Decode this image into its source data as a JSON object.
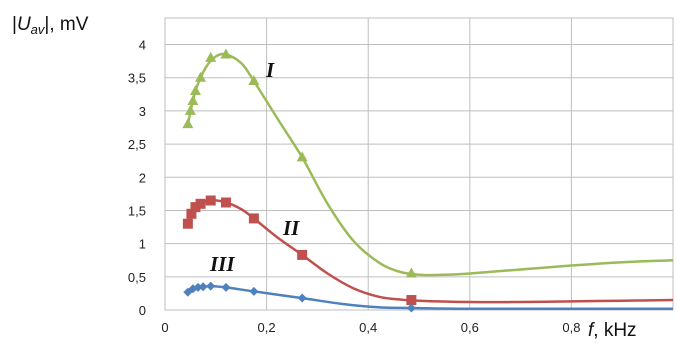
{
  "chart_data": {
    "type": "line",
    "ylabel_parts": {
      "bar_left": "|",
      "var": "U",
      "sub": "av",
      "bar_right": "|",
      "unit": ", mV"
    },
    "xlabel_parts": {
      "var": "f",
      "unit": ", kHz"
    },
    "xlim": [
      0,
      1.0
    ],
    "ylim": [
      0,
      4.4
    ],
    "x_ticks": [
      0,
      0.2,
      0.4,
      0.6,
      0.8
    ],
    "x_tick_labels": [
      "0",
      "0,2",
      "0,4",
      "0,6",
      "0,8"
    ],
    "y_ticks": [
      0,
      0.5,
      1,
      1.5,
      2,
      2.5,
      3,
      3.5,
      4
    ],
    "y_tick_labels": [
      "0",
      "0,5",
      "1",
      "1,5",
      "2",
      "2,5",
      "3",
      "3,5",
      "4"
    ],
    "grid": true,
    "series": [
      {
        "name": "I",
        "color": "#9bbb59",
        "marker": "triangle",
        "points": [
          [
            0.045,
            2.8
          ],
          [
            0.05,
            3.0
          ],
          [
            0.055,
            3.15
          ],
          [
            0.06,
            3.3
          ],
          [
            0.07,
            3.5
          ],
          [
            0.09,
            3.8
          ],
          [
            0.12,
            3.85
          ],
          [
            0.175,
            3.45
          ],
          [
            0.27,
            2.3
          ],
          [
            0.485,
            0.55
          ]
        ],
        "curve": [
          [
            0.045,
            2.8
          ],
          [
            0.06,
            3.3
          ],
          [
            0.08,
            3.65
          ],
          [
            0.1,
            3.82
          ],
          [
            0.12,
            3.85
          ],
          [
            0.15,
            3.72
          ],
          [
            0.175,
            3.45
          ],
          [
            0.22,
            2.9
          ],
          [
            0.27,
            2.3
          ],
          [
            0.32,
            1.6
          ],
          [
            0.37,
            1.05
          ],
          [
            0.42,
            0.72
          ],
          [
            0.46,
            0.58
          ],
          [
            0.5,
            0.53
          ],
          [
            0.55,
            0.53
          ],
          [
            0.6,
            0.55
          ],
          [
            0.7,
            0.61
          ],
          [
            0.8,
            0.67
          ],
          [
            0.9,
            0.72
          ],
          [
            1.0,
            0.75
          ]
        ]
      },
      {
        "name": "II",
        "color": "#c0504d",
        "marker": "square",
        "points": [
          [
            0.045,
            1.3
          ],
          [
            0.052,
            1.45
          ],
          [
            0.06,
            1.55
          ],
          [
            0.07,
            1.6
          ],
          [
            0.09,
            1.65
          ],
          [
            0.12,
            1.62
          ],
          [
            0.175,
            1.38
          ],
          [
            0.27,
            0.83
          ],
          [
            0.485,
            0.15
          ]
        ],
        "curve": [
          [
            0.045,
            1.3
          ],
          [
            0.06,
            1.55
          ],
          [
            0.09,
            1.65
          ],
          [
            0.12,
            1.62
          ],
          [
            0.15,
            1.52
          ],
          [
            0.175,
            1.38
          ],
          [
            0.22,
            1.1
          ],
          [
            0.27,
            0.83
          ],
          [
            0.32,
            0.55
          ],
          [
            0.37,
            0.33
          ],
          [
            0.42,
            0.2
          ],
          [
            0.46,
            0.16
          ],
          [
            0.5,
            0.14
          ],
          [
            0.6,
            0.12
          ],
          [
            0.7,
            0.12
          ],
          [
            0.8,
            0.13
          ],
          [
            0.9,
            0.14
          ],
          [
            1.0,
            0.15
          ]
        ]
      },
      {
        "name": "III",
        "color": "#4f81bd",
        "marker": "diamond",
        "points": [
          [
            0.045,
            0.27
          ],
          [
            0.055,
            0.32
          ],
          [
            0.065,
            0.34
          ],
          [
            0.075,
            0.35
          ],
          [
            0.09,
            0.36
          ],
          [
            0.12,
            0.34
          ],
          [
            0.175,
            0.28
          ],
          [
            0.27,
            0.18
          ],
          [
            0.485,
            0.03
          ]
        ],
        "curve": [
          [
            0.045,
            0.27
          ],
          [
            0.07,
            0.34
          ],
          [
            0.09,
            0.36
          ],
          [
            0.12,
            0.34
          ],
          [
            0.175,
            0.28
          ],
          [
            0.27,
            0.18
          ],
          [
            0.35,
            0.09
          ],
          [
            0.42,
            0.04
          ],
          [
            0.485,
            0.03
          ],
          [
            0.6,
            0.02
          ],
          [
            0.8,
            0.02
          ],
          [
            1.0,
            0.02
          ]
        ]
      }
    ]
  }
}
